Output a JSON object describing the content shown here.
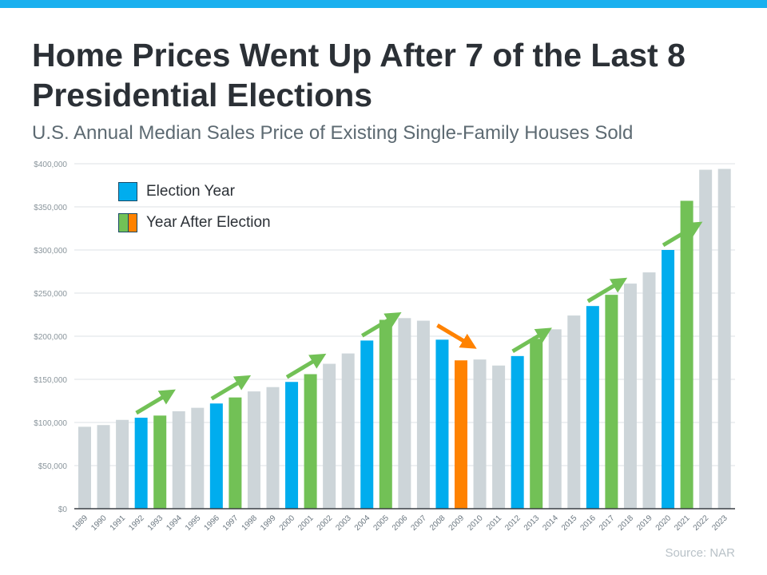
{
  "header": {
    "title": "Home Prices Went Up After 7 of the Last 8 Presidential Elections",
    "subtitle": "U.S. Annual Median Sales Price of Existing Single-Family Houses Sold",
    "source": "Source: NAR"
  },
  "colors": {
    "election": "#00adee",
    "after_up": "#72c156",
    "after_down": "#ff8200",
    "other": "#cdd5d9",
    "accent_bar": "#1ab0ef"
  },
  "legend": [
    {
      "label": "Election Year",
      "colors": [
        "#00adee"
      ]
    },
    {
      "label": "Year After Election",
      "colors": [
        "#72c156",
        "#ff8200"
      ]
    }
  ],
  "chart_data": {
    "type": "bar",
    "title": "Home Prices Went Up After 7 of the Last 8 Presidential Elections",
    "subtitle": "U.S. Annual Median Sales Price of Existing Single-Family Houses Sold",
    "categories": [
      "1989",
      "1990",
      "1991",
      "1992",
      "1993",
      "1994",
      "1995",
      "1996",
      "1997",
      "1998",
      "1999",
      "2000",
      "2001",
      "2002",
      "2003",
      "2004",
      "2005",
      "2006",
      "2007",
      "2008",
      "2009",
      "2010",
      "2011",
      "2012",
      "2013",
      "2014",
      "2015",
      "2016",
      "2017",
      "2018",
      "2019",
      "2020",
      "2021",
      "2022",
      "2023"
    ],
    "values": [
      95000,
      97000,
      103000,
      105500,
      108000,
      113000,
      117000,
      122000,
      129000,
      136000,
      141000,
      147000,
      156000,
      168000,
      180000,
      195000,
      219000,
      221000,
      218000,
      196000,
      172000,
      173000,
      166000,
      177000,
      197000,
      208000,
      224000,
      235000,
      248000,
      261000,
      274000,
      300000,
      357000,
      393000,
      394000
    ],
    "bar_types": [
      "other",
      "other",
      "other",
      "election",
      "after_up",
      "other",
      "other",
      "election",
      "after_up",
      "other",
      "other",
      "election",
      "after_up",
      "other",
      "other",
      "election",
      "after_up",
      "other",
      "other",
      "election",
      "after_down",
      "other",
      "other",
      "election",
      "after_up",
      "other",
      "other",
      "election",
      "after_up",
      "other",
      "other",
      "election",
      "after_up",
      "other",
      "other"
    ],
    "arrows": [
      {
        "from": "1992",
        "to": "1993",
        "direction": "up"
      },
      {
        "from": "1996",
        "to": "1997",
        "direction": "up"
      },
      {
        "from": "2000",
        "to": "2001",
        "direction": "up"
      },
      {
        "from": "2004",
        "to": "2005",
        "direction": "up"
      },
      {
        "from": "2008",
        "to": "2009",
        "direction": "down"
      },
      {
        "from": "2012",
        "to": "2013",
        "direction": "up"
      },
      {
        "from": "2016",
        "to": "2017",
        "direction": "up"
      },
      {
        "from": "2020",
        "to": "2021",
        "direction": "up"
      }
    ],
    "ylim": [
      0,
      400000
    ],
    "yticks": [
      "$0",
      "$50,000",
      "$100,000",
      "$150,000",
      "$200,000",
      "$250,000",
      "$300,000",
      "$350,000",
      "$400,000"
    ],
    "grid": true,
    "legend_position": "top-left"
  }
}
